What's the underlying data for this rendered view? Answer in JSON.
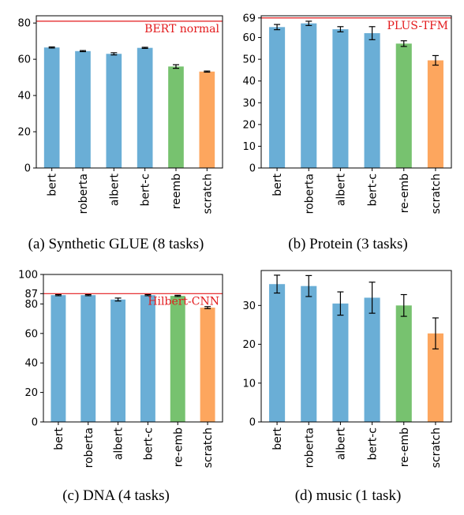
{
  "colors": {
    "bert_family": "#6aaed6",
    "re_emb": "#77c26f",
    "scratch": "#fda65e",
    "reference": "#e31a1c",
    "errorbar": "#000000"
  },
  "chart_data": [
    {
      "type": "bar",
      "caption": "(a) Synthetic GLUE (8 tasks)",
      "categories": [
        "bert",
        "roberta",
        "albert",
        "bert-c",
        "reemb",
        "scratch"
      ],
      "values": [
        66.5,
        64.5,
        63.0,
        66.3,
        56.0,
        53.2
      ],
      "errors": [
        0.3,
        0.3,
        0.6,
        0.3,
        1.0,
        0.3
      ],
      "bar_colors": [
        "#6aaed6",
        "#6aaed6",
        "#6aaed6",
        "#6aaed6",
        "#77c26f",
        "#fda65e"
      ],
      "ylim": [
        0,
        84
      ],
      "yticks": [
        0,
        20,
        40,
        60,
        80
      ],
      "reference": {
        "value": 81,
        "label": "BERT normal"
      },
      "grid": false
    },
    {
      "type": "bar",
      "caption": "(b) Protein (3 tasks)",
      "categories": [
        "bert",
        "roberta",
        "albert",
        "bert-c",
        "re-emb",
        "scratch"
      ],
      "values": [
        64.8,
        66.5,
        63.8,
        62.0,
        57.2,
        49.5
      ],
      "errors": [
        1.2,
        1.0,
        1.2,
        3.0,
        1.3,
        2.2
      ],
      "bar_colors": [
        "#6aaed6",
        "#6aaed6",
        "#6aaed6",
        "#6aaed6",
        "#77c26f",
        "#fda65e"
      ],
      "ylim": [
        0,
        70
      ],
      "yticks": [
        0,
        10,
        20,
        30,
        40,
        50,
        60,
        69
      ],
      "reference": {
        "value": 69,
        "label": "PLUS-TFM"
      },
      "grid": false
    },
    {
      "type": "bar",
      "caption": "(c) DNA (4 tasks)",
      "categories": [
        "bert",
        "roberta",
        "albert",
        "bert-c",
        "re-emb",
        "scratch"
      ],
      "values": [
        86.0,
        86.0,
        83.0,
        86.0,
        85.5,
        77.5
      ],
      "errors": [
        0.4,
        0.4,
        1.0,
        0.4,
        0.4,
        0.7
      ],
      "bar_colors": [
        "#6aaed6",
        "#6aaed6",
        "#6aaed6",
        "#6aaed6",
        "#77c26f",
        "#fda65e"
      ],
      "ylim": [
        0,
        100
      ],
      "yticks": [
        0,
        20,
        40,
        60,
        80,
        87,
        100
      ],
      "reference": {
        "value": 87,
        "label": "Hilbert-CNN"
      },
      "grid": false
    },
    {
      "type": "bar",
      "caption": "(d) music (1 task)",
      "categories": [
        "bert",
        "roberta",
        "albert",
        "bert-c",
        "re-emb",
        "scratch"
      ],
      "values": [
        35.5,
        35.0,
        30.5,
        32.0,
        30.0,
        22.8
      ],
      "errors": [
        2.3,
        2.7,
        3.0,
        4.0,
        2.8,
        4.0
      ],
      "bar_colors": [
        "#6aaed6",
        "#6aaed6",
        "#6aaed6",
        "#6aaed6",
        "#77c26f",
        "#fda65e"
      ],
      "ylim": [
        0,
        39
      ],
      "yticks": [
        0,
        10,
        20,
        30
      ],
      "reference": null,
      "grid": false
    }
  ]
}
